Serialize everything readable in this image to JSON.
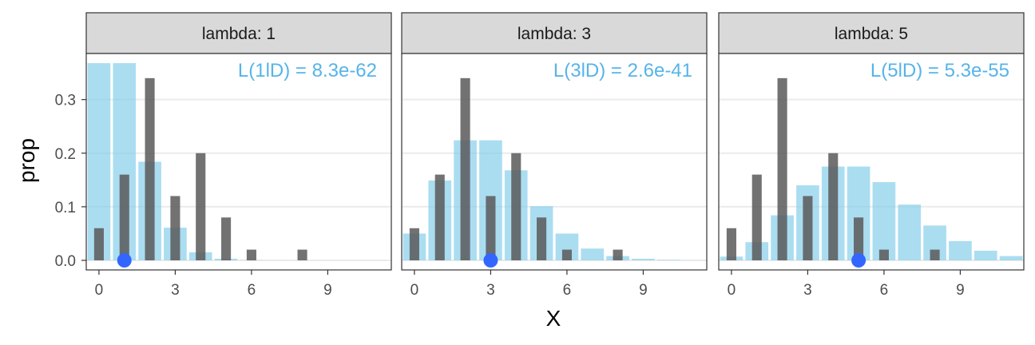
{
  "chart_data": {
    "type": "bar",
    "xlabel": "X",
    "ylabel": "prop",
    "xlim": [
      -0.5,
      11.5
    ],
    "ylim": [
      0,
      0.38
    ],
    "xticks": [
      0,
      3,
      6,
      9
    ],
    "yticks": [
      0.0,
      0.1,
      0.2,
      0.3
    ],
    "ytick_labels": [
      "0.0",
      "0.1",
      "0.2",
      "0.3"
    ],
    "grid": true,
    "observed": {
      "x": [
        0,
        1,
        2,
        3,
        4,
        5,
        6,
        8
      ],
      "values": [
        0.06,
        0.16,
        0.34,
        0.12,
        0.2,
        0.08,
        0.02,
        0.02
      ],
      "color": "#595959"
    },
    "poisson_color": "#87CEEB",
    "point_color": "#3366FF",
    "annotation_color": "#56B4E9",
    "panels": [
      {
        "strip": "lambda: 1",
        "annotation": "L(1lD) = 8.3e-62",
        "point_x": 1,
        "poisson": {
          "x": [
            0,
            1,
            2,
            3,
            4,
            5,
            6,
            7,
            8,
            9,
            10,
            11
          ],
          "values": [
            0.368,
            0.368,
            0.184,
            0.061,
            0.015,
            0.003,
            0.0005,
            0.0001,
            0.0,
            0.0,
            0.0,
            0.0
          ]
        }
      },
      {
        "strip": "lambda: 3",
        "annotation": "L(3lD) = 2.6e-41",
        "point_x": 3,
        "poisson": {
          "x": [
            0,
            1,
            2,
            3,
            4,
            5,
            6,
            7,
            8,
            9,
            10,
            11
          ],
          "values": [
            0.05,
            0.149,
            0.224,
            0.224,
            0.168,
            0.101,
            0.05,
            0.022,
            0.008,
            0.003,
            0.001,
            0.0002
          ]
        }
      },
      {
        "strip": "lambda: 5",
        "annotation": "L(5lD) = 5.3e-55",
        "point_x": 5,
        "poisson": {
          "x": [
            0,
            1,
            2,
            3,
            4,
            5,
            6,
            7,
            8,
            9,
            10,
            11
          ],
          "values": [
            0.007,
            0.034,
            0.084,
            0.14,
            0.175,
            0.175,
            0.146,
            0.104,
            0.065,
            0.036,
            0.018,
            0.008
          ]
        }
      }
    ]
  }
}
